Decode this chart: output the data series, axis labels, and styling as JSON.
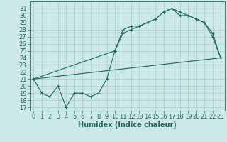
{
  "xlabel": "Humidex (Indice chaleur)",
  "bg_color": "#cce8e8",
  "line_color": "#1a6b5a",
  "grid_color": "#a8cccc",
  "xlim": [
    -0.5,
    23.5
  ],
  "ylim": [
    16.5,
    32.0
  ],
  "xticks": [
    0,
    1,
    2,
    3,
    4,
    5,
    6,
    7,
    8,
    9,
    10,
    11,
    12,
    13,
    14,
    15,
    16,
    17,
    18,
    19,
    20,
    21,
    22,
    23
  ],
  "yticks": [
    17,
    18,
    19,
    20,
    21,
    22,
    23,
    24,
    25,
    26,
    27,
    28,
    29,
    30,
    31
  ],
  "line1_x": [
    0,
    1,
    2,
    3,
    4,
    5,
    6,
    7,
    8,
    9,
    10,
    11,
    12,
    13,
    14,
    15,
    16,
    17,
    18,
    19,
    20,
    21,
    22,
    23
  ],
  "line1_y": [
    21,
    19,
    18.5,
    20,
    17,
    19,
    19,
    18.5,
    19,
    21,
    25,
    28,
    28.5,
    28.5,
    29,
    29.5,
    30.5,
    31,
    30,
    30,
    29.5,
    29,
    27,
    24
  ],
  "line2_x": [
    0,
    23
  ],
  "line2_y": [
    21.0,
    24.0
  ],
  "line3_x": [
    0,
    10,
    11,
    12,
    13,
    14,
    15,
    16,
    17,
    18,
    19,
    20,
    21,
    22,
    23
  ],
  "line3_y": [
    21,
    25,
    27.5,
    28,
    28.5,
    29,
    29.5,
    30.5,
    31,
    30.5,
    30,
    29.5,
    29,
    27.5,
    24
  ],
  "font_size_tick": 6,
  "font_size_label": 7
}
